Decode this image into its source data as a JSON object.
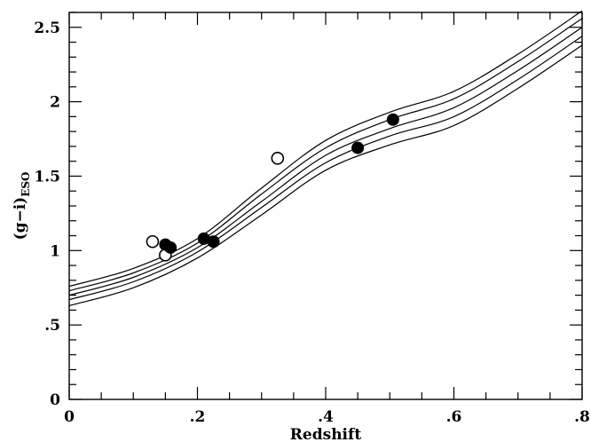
{
  "chart_data": {
    "type": "scatter",
    "title": "",
    "xlabel": "Redshift",
    "ylabel": "(g−i)",
    "ylabel_subscript": "ESO",
    "xlim": [
      0,
      0.8
    ],
    "ylim": [
      0,
      2.6
    ],
    "x_ticks": [
      {
        "value": 0,
        "label": "0"
      },
      {
        "value": 0.2,
        "label": ".2"
      },
      {
        "value": 0.4,
        "label": ".4"
      },
      {
        "value": 0.6,
        "label": ".6"
      },
      {
        "value": 0.8,
        "label": ".8"
      }
    ],
    "y_ticks": [
      {
        "value": 0,
        "label": "0"
      },
      {
        "value": 0.5,
        "label": ".5"
      },
      {
        "value": 1,
        "label": "1"
      },
      {
        "value": 1.5,
        "label": "1.5"
      },
      {
        "value": 2,
        "label": "2"
      },
      {
        "value": 2.5,
        "label": "2.5"
      }
    ],
    "grid": false,
    "legend": "none",
    "curves": [
      {
        "points": [
          [
            0,
            0.76
          ],
          [
            0.1,
            0.88
          ],
          [
            0.2,
            1.08
          ],
          [
            0.3,
            1.42
          ],
          [
            0.4,
            1.74
          ],
          [
            0.5,
            1.93
          ],
          [
            0.6,
            2.07
          ],
          [
            0.7,
            2.32
          ],
          [
            0.8,
            2.61
          ]
        ]
      },
      {
        "points": [
          [
            0,
            0.73
          ],
          [
            0.1,
            0.85
          ],
          [
            0.2,
            1.05
          ],
          [
            0.3,
            1.38
          ],
          [
            0.4,
            1.69
          ],
          [
            0.5,
            1.88
          ],
          [
            0.6,
            2.02
          ],
          [
            0.7,
            2.27
          ],
          [
            0.8,
            2.56
          ]
        ]
      },
      {
        "points": [
          [
            0,
            0.7
          ],
          [
            0.1,
            0.82
          ],
          [
            0.2,
            1.02
          ],
          [
            0.3,
            1.33
          ],
          [
            0.4,
            1.64
          ],
          [
            0.5,
            1.82
          ],
          [
            0.6,
            1.96
          ],
          [
            0.7,
            2.21
          ],
          [
            0.8,
            2.5
          ]
        ]
      },
      {
        "points": [
          [
            0,
            0.67
          ],
          [
            0.1,
            0.79
          ],
          [
            0.2,
            0.99
          ],
          [
            0.3,
            1.29
          ],
          [
            0.4,
            1.59
          ],
          [
            0.5,
            1.77
          ],
          [
            0.6,
            1.9
          ],
          [
            0.7,
            2.15
          ],
          [
            0.8,
            2.44
          ]
        ]
      },
      {
        "points": [
          [
            0,
            0.63
          ],
          [
            0.1,
            0.75
          ],
          [
            0.2,
            0.95
          ],
          [
            0.3,
            1.24
          ],
          [
            0.4,
            1.54
          ],
          [
            0.5,
            1.71
          ],
          [
            0.6,
            1.84
          ],
          [
            0.7,
            2.09
          ],
          [
            0.8,
            2.38
          ]
        ]
      }
    ],
    "points_filled": [
      {
        "x": 0.15,
        "y": 1.04
      },
      {
        "x": 0.158,
        "y": 1.02
      },
      {
        "x": 0.21,
        "y": 1.08
      },
      {
        "x": 0.225,
        "y": 1.06
      },
      {
        "x": 0.45,
        "y": 1.69
      },
      {
        "x": 0.505,
        "y": 1.88
      }
    ],
    "points_open": [
      {
        "x": 0.13,
        "y": 1.06
      },
      {
        "x": 0.15,
        "y": 0.97
      },
      {
        "x": 0.325,
        "y": 1.62
      }
    ],
    "colors": {
      "ink": "#000000",
      "background": "#ffffff"
    }
  }
}
